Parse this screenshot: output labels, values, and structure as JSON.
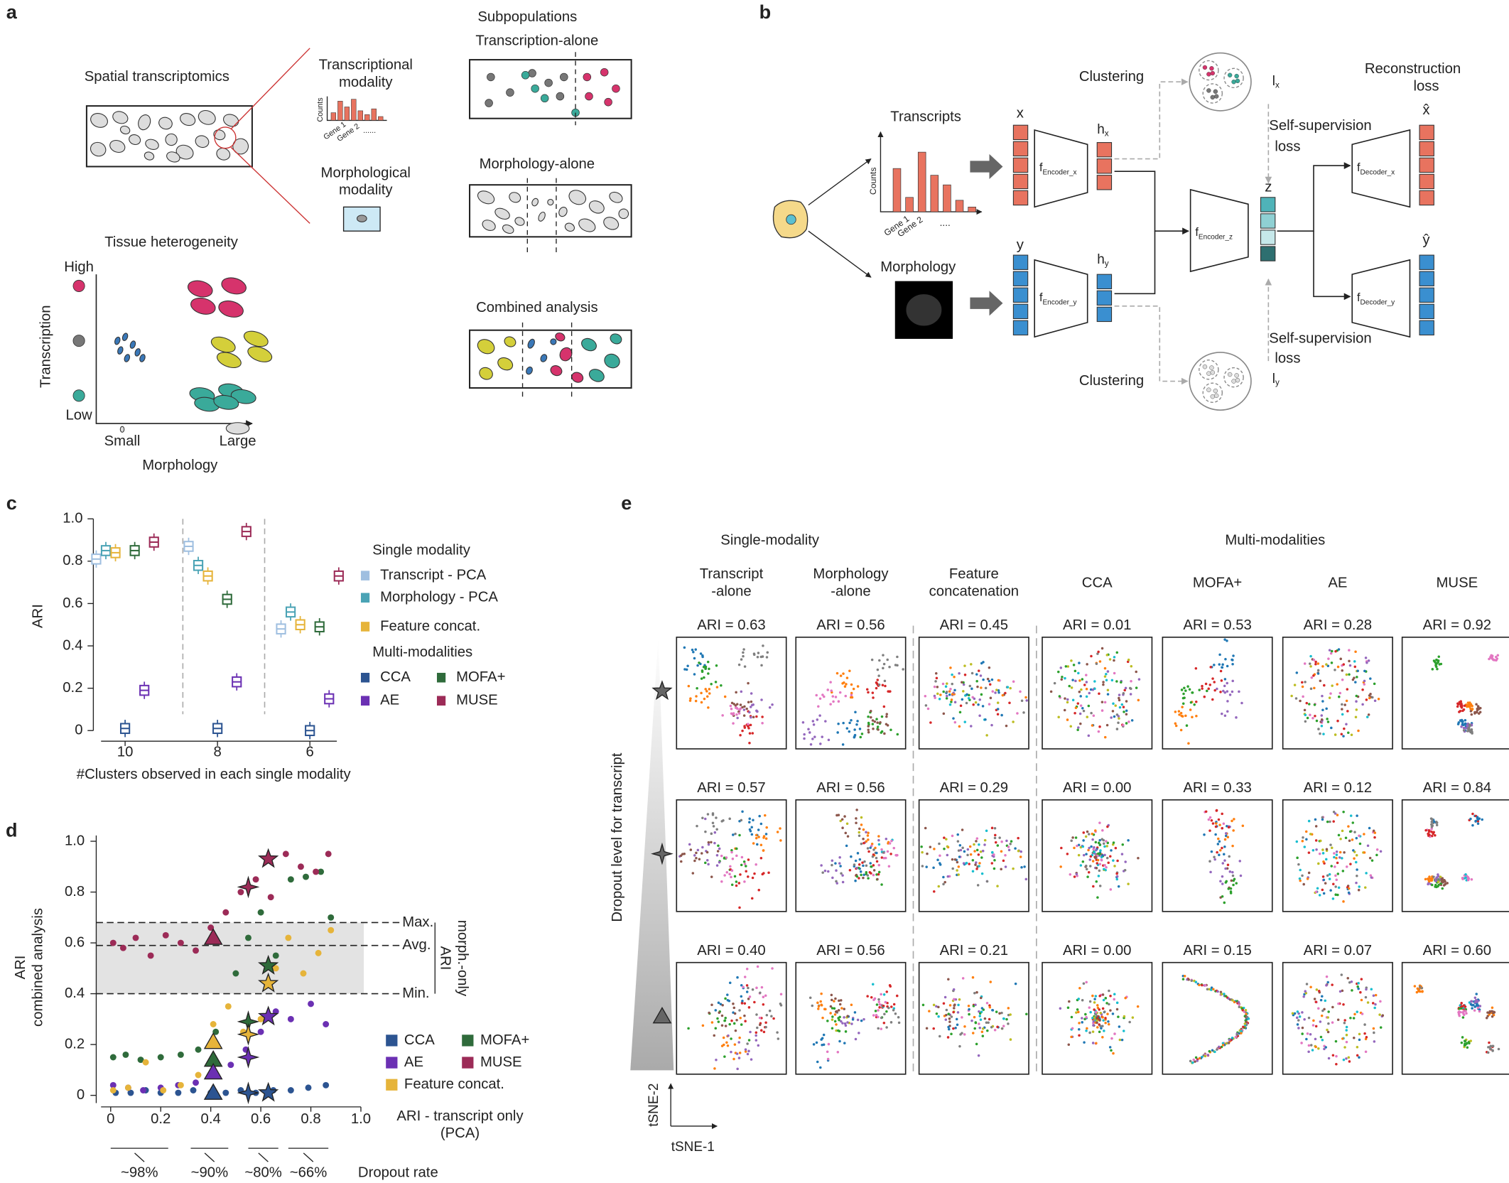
{
  "panels": {
    "a": {
      "label": "a",
      "spatial_title": "Spatial transcriptomics",
      "transcriptional": [
        "Transcriptional",
        "modality"
      ],
      "counts": "Counts",
      "genes": [
        "Gene 1",
        "Gene 2",
        "......"
      ],
      "morphological": [
        "Morphological",
        "modality"
      ],
      "subpopulations": "Subpopulations",
      "transcription_alone": "Transcription-alone",
      "morphology_alone": "Morphology-alone",
      "combined": "Combined analysis",
      "heterogeneity": "Tissue heterogeneity",
      "high": "High",
      "low": "Low",
      "y_axis": "Transcription",
      "small": "Small",
      "large": "Large",
      "x_axis": "Morphology"
    },
    "b": {
      "label": "b",
      "transcripts": "Transcripts",
      "counts": "Counts",
      "genes": [
        "Gene 1",
        "Gene 2",
        "...."
      ],
      "morphology": "Morphology",
      "x": "x",
      "y": "y",
      "hx": [
        "h",
        "x"
      ],
      "hy": [
        "h",
        "y"
      ],
      "z": "z",
      "enc_x": [
        "f",
        "Encoder_x"
      ],
      "enc_y": [
        "f",
        "Encoder_y"
      ],
      "enc_z": [
        "f",
        "Encoder_z"
      ],
      "dec_x": [
        "f",
        "Decoder_x"
      ],
      "dec_y": [
        "f",
        "Decoder_y"
      ],
      "clustering_top": "Clustering",
      "clustering_bottom": "Clustering",
      "lx": [
        "l",
        "x"
      ],
      "ly": [
        "l",
        "y"
      ],
      "ssl_top": [
        "Self-supervision",
        "loss"
      ],
      "ssl_bottom": [
        "Self-supervision",
        "loss"
      ],
      "reconstruction": [
        "Reconstruction",
        "loss"
      ],
      "x_hat": "x̂",
      "y_hat": "ŷ"
    },
    "e": {
      "label": "e",
      "single": "Single-modality",
      "multi": "Multi-modalities",
      "columns": [
        [
          "Transcript",
          "-alone"
        ],
        [
          "Morphology",
          "-alone"
        ],
        [
          "Feature",
          "concatenation"
        ],
        [
          "CCA"
        ],
        [
          "MOFA+"
        ],
        [
          "AE"
        ],
        [
          "MUSE"
        ]
      ],
      "rows": [
        [
          "ARI = 0.63",
          "ARI = 0.56",
          "ARI = 0.45",
          "ARI = 0.01",
          "ARI = 0.53",
          "ARI = 0.28",
          "ARI = 0.92"
        ],
        [
          "ARI = 0.57",
          "ARI = 0.56",
          "ARI = 0.29",
          "ARI = 0.00",
          "ARI = 0.33",
          "ARI = 0.12",
          "ARI = 0.84"
        ],
        [
          "ARI = 0.40",
          "ARI = 0.56",
          "ARI = 0.21",
          "ARI = 0.00",
          "ARI = 0.15",
          "ARI = 0.07",
          "ARI = 0.60"
        ]
      ],
      "dropout_axis": "Dropout level for transcript",
      "tsne_y": "tSNE-2",
      "tsne_x": "tSNE-1"
    }
  },
  "chart_data": [
    {
      "type": "box",
      "panel": "c",
      "ylabel": "ARI",
      "xlabel": "#Clusters observed in each single modality",
      "categories": [
        "10",
        "8",
        "6"
      ],
      "ylim": [
        0,
        1
      ],
      "yticks": [
        0,
        0.2,
        0.4,
        0.6,
        0.8,
        {
          "value": 1,
          "label": "1.0"
        }
      ],
      "series_groups": [
        {
          "name": "Single modality",
          "series": [
            {
              "name": "Transcript - PCA",
              "color": "#9fbfe0",
              "values": [
                0.81,
                0.87,
                0.48
              ]
            },
            {
              "name": "Morphology - PCA",
              "color": "#4aa3b5",
              "values": [
                0.85,
                0.78,
                0.56
              ]
            },
            {
              "name": "Feature concat.",
              "color": "#e6b43a",
              "values": [
                0.84,
                0.73,
                0.5
              ]
            }
          ]
        },
        {
          "name": "Multi-modalities",
          "series": [
            {
              "name": "CCA",
              "color": "#2c5491",
              "values": [
                0.01,
                0.01,
                0
              ]
            },
            {
              "name": "MOFA+",
              "color": "#2f6b3b",
              "values": [
                0.85,
                0.62,
                0.49
              ]
            },
            {
              "name": "AE",
              "color": "#6b30b3",
              "values": [
                0.19,
                0.23,
                0.15
              ]
            },
            {
              "name": "MUSE",
              "color": "#9c2b57",
              "values": [
                0.89,
                0.94,
                0.73
              ]
            }
          ]
        }
      ]
    },
    {
      "type": "scatter",
      "panel": "d",
      "xlabel": [
        "ARI - transcript only",
        "(PCA)"
      ],
      "ylabel": [
        "ARI",
        "combined analysis"
      ],
      "xlim": [
        0,
        1
      ],
      "ylim": [
        0,
        1
      ],
      "xticks": [
        0,
        0.2,
        0.4,
        0.6,
        0.8,
        {
          "value": 1,
          "label": "1.0"
        }
      ],
      "yticks": [
        0,
        0.2,
        0.4,
        0.6,
        0.8,
        {
          "value": 1,
          "label": "1.0"
        }
      ],
      "reference_title": [
        "ARI",
        "morph.-only"
      ],
      "reference_lines": [
        {
          "label": "Max.",
          "value": 0.68
        },
        {
          "label": "Avg.",
          "value": 0.59
        },
        {
          "label": "Min.",
          "value": 0.4
        }
      ],
      "series": [
        {
          "name": "CCA",
          "color": "#2c5491",
          "x": [
            0.02,
            0.08,
            0.14,
            0.2,
            0.27,
            0.33,
            0.4,
            0.46,
            0.52,
            0.58,
            0.65,
            0.72,
            0.79,
            0.86
          ],
          "values": [
            0.01,
            0.01,
            0.02,
            0.01,
            0.01,
            0.02,
            0.01,
            0.01,
            0.02,
            0.01,
            0.02,
            0.02,
            0.03,
            0.04
          ]
        },
        {
          "name": "MOFA+",
          "color": "#2f6b3b",
          "x": [
            0.01,
            0.06,
            0.12,
            0.2,
            0.28,
            0.35,
            0.42,
            0.5,
            0.55,
            0.6,
            0.66,
            0.72,
            0.78,
            0.84,
            0.88
          ],
          "values": [
            0.15,
            0.16,
            0.14,
            0.15,
            0.16,
            0.18,
            0.25,
            0.48,
            0.62,
            0.72,
            0.55,
            0.85,
            0.86,
            0.88,
            0.7
          ]
        },
        {
          "name": "AE",
          "color": "#6b30b3",
          "x": [
            0.01,
            0.07,
            0.13,
            0.2,
            0.27,
            0.34,
            0.41,
            0.48,
            0.54,
            0.6,
            0.66,
            0.72,
            0.8,
            0.86
          ],
          "values": [
            0.04,
            0.03,
            0.02,
            0.03,
            0.04,
            0.05,
            0.08,
            0.12,
            0.18,
            0.25,
            0.33,
            0.3,
            0.36,
            0.28
          ]
        },
        {
          "name": "MUSE",
          "color": "#9c2b57",
          "x": [
            0.01,
            0.05,
            0.1,
            0.16,
            0.22,
            0.28,
            0.34,
            0.4,
            0.46,
            0.52,
            0.58,
            0.64,
            0.7,
            0.76,
            0.82,
            0.87
          ],
          "values": [
            0.6,
            0.58,
            0.62,
            0.55,
            0.63,
            0.6,
            0.57,
            0.66,
            0.72,
            0.8,
            0.85,
            0.78,
            0.95,
            0.9,
            0.88,
            0.95
          ]
        },
        {
          "name": "Feature concat.",
          "color": "#e6b43a",
          "x": [
            0.01,
            0.07,
            0.14,
            0.21,
            0.28,
            0.35,
            0.41,
            0.47,
            0.53,
            0.6,
            0.66,
            0.71,
            0.77,
            0.83,
            0.88
          ],
          "values": [
            0.02,
            0.03,
            0.13,
            0.02,
            0.04,
            0.08,
            0.28,
            0.35,
            0.25,
            0.3,
            0.5,
            0.62,
            0.48,
            0.56,
            0.65
          ]
        }
      ],
      "markers": [
        {
          "shape": "triangle",
          "x": 0.41,
          "values": [
            0.01,
            0.14,
            0.09,
            0.62,
            0.21
          ]
        },
        {
          "shape": "four-point star",
          "x": 0.55,
          "values": [
            0.01,
            0.29,
            0.15,
            0.82,
            0.24
          ]
        },
        {
          "shape": "star",
          "x": 0.63,
          "values": [
            0.01,
            0.51,
            0.31,
            0.93,
            0.44
          ]
        }
      ],
      "dropout": {
        "title": "Dropout rate",
        "groups": [
          {
            "label": "~98%",
            "range": [
              0,
              0.23
            ]
          },
          {
            "label": "~90%",
            "range": [
              0.32,
              0.47
            ]
          },
          {
            "label": "~80%",
            "range": [
              0.55,
              0.67
            ]
          },
          {
            "label": "~66%",
            "range": [
              0.71,
              0.87
            ]
          }
        ]
      }
    }
  ]
}
